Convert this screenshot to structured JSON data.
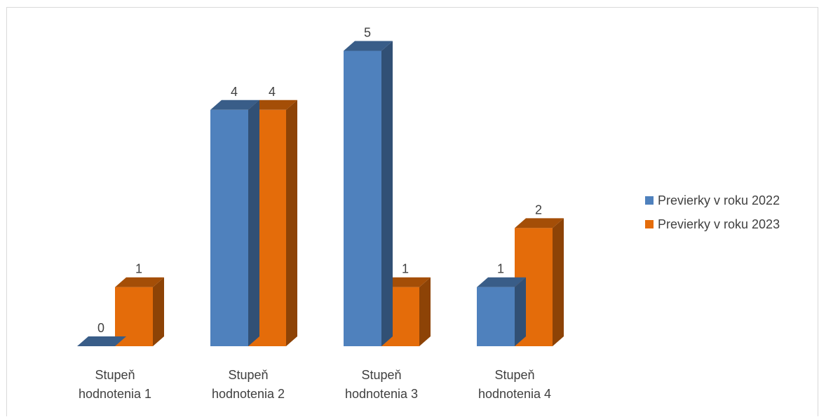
{
  "chart_data": {
    "type": "bar",
    "categories": [
      [
        "Stupeň",
        "hodnotenia 1"
      ],
      [
        "Stupeň",
        "hodnotenia 2"
      ],
      [
        "Stupeň",
        "hodnotenia 3"
      ],
      [
        "Stupeň",
        "hodnotenia 4"
      ]
    ],
    "series": [
      {
        "name": "Previerky v roku 2022",
        "values": [
          0,
          4,
          5,
          1
        ],
        "color": "#4f81bd"
      },
      {
        "name": "Previerky v roku 2023",
        "values": [
          1,
          4,
          1,
          2
        ],
        "color": "#e46c0a"
      }
    ],
    "ylim": [
      0,
      5
    ],
    "grid": false,
    "legend_position": "right"
  }
}
